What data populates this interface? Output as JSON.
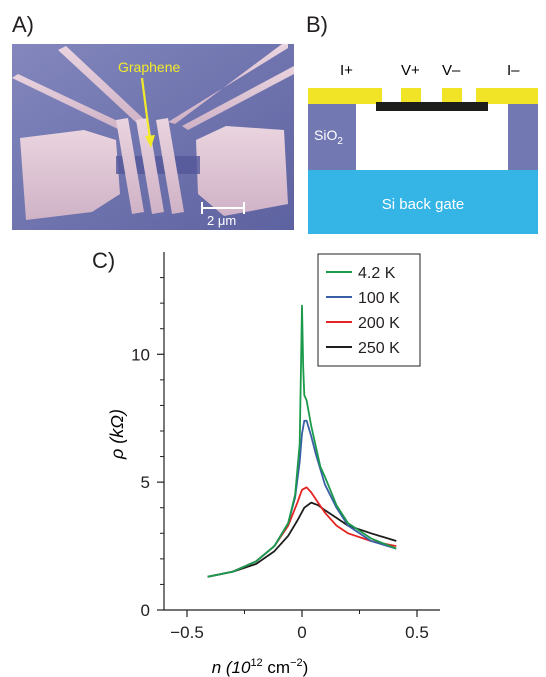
{
  "panels": {
    "a": {
      "letter": "A)",
      "label": "Graphene",
      "scalebar": "2 μm"
    },
    "b": {
      "letter": "B)",
      "contacts": [
        "I+",
        "V+",
        "V–",
        "I–"
      ],
      "oxide_main": "SiO",
      "oxide_sub": "2",
      "gate": "Si back gate"
    },
    "c": {
      "letter": "C)"
    }
  },
  "colors": {
    "sem_bg": "#6e73ad",
    "sem_metal": "#e3c8d6",
    "arrow": "#f2ea2a",
    "gold": "#f1e325",
    "oxide": "#7278b2",
    "gate": "#34b5e5"
  },
  "chart_data": {
    "type": "line",
    "xlabel_main": "n (10",
    "xlabel_exp": "12",
    "xlabel_unit": " cm",
    "xlabel_unit_exp": "−2",
    "xlabel_close": ")",
    "ylabel": "ρ (kΩ)",
    "xlim": [
      -0.6,
      0.6
    ],
    "ylim": [
      0,
      14
    ],
    "xticks": [
      -0.5,
      0,
      0.5
    ],
    "xtick_labels": [
      "−0.5",
      "0",
      "0.5"
    ],
    "yticks": [
      0,
      5,
      10
    ],
    "ytick_labels": [
      "0",
      "5",
      "10"
    ],
    "grid": false,
    "legend_position": "top-right",
    "series": [
      {
        "name": "4.2 K",
        "color": "#1a9a4a",
        "x": [
          -0.41,
          -0.3,
          -0.2,
          -0.12,
          -0.06,
          -0.03,
          -0.01,
          0,
          0.005,
          0.01,
          0.02,
          0.04,
          0.06,
          0.08,
          0.1,
          0.15,
          0.2,
          0.3,
          0.41
        ],
        "y": [
          1.3,
          1.5,
          1.9,
          2.5,
          3.4,
          4.5,
          6.5,
          11.9,
          9.5,
          8.4,
          8.2,
          7.2,
          6.4,
          5.6,
          5.2,
          4.1,
          3.4,
          2.8,
          2.4
        ]
      },
      {
        "name": "100 K",
        "color": "#3a5fa6",
        "x": [
          -0.41,
          -0.3,
          -0.2,
          -0.12,
          -0.06,
          -0.03,
          -0.01,
          0,
          0.01,
          0.02,
          0.04,
          0.06,
          0.08,
          0.1,
          0.15,
          0.2,
          0.3,
          0.41
        ],
        "y": [
          1.3,
          1.5,
          1.9,
          2.5,
          3.4,
          4.4,
          5.8,
          6.9,
          7.4,
          7.4,
          6.8,
          6.1,
          5.5,
          4.9,
          4.0,
          3.3,
          2.7,
          2.4
        ]
      },
      {
        "name": "200 K",
        "color": "#e52421",
        "x": [
          -0.41,
          -0.3,
          -0.2,
          -0.12,
          -0.06,
          -0.02,
          0,
          0.02,
          0.04,
          0.07,
          0.1,
          0.15,
          0.2,
          0.3,
          0.41
        ],
        "y": [
          1.3,
          1.5,
          1.9,
          2.5,
          3.3,
          4.2,
          4.7,
          4.8,
          4.6,
          4.2,
          3.8,
          3.3,
          3.0,
          2.7,
          2.5
        ]
      },
      {
        "name": "250 K",
        "color": "#1d1d1b",
        "x": [
          -0.41,
          -0.3,
          -0.2,
          -0.12,
          -0.06,
          -0.02,
          0.01,
          0.04,
          0.07,
          0.1,
          0.15,
          0.2,
          0.3,
          0.41
        ],
        "y": [
          1.3,
          1.5,
          1.8,
          2.3,
          2.9,
          3.5,
          4.0,
          4.2,
          4.1,
          3.9,
          3.6,
          3.3,
          3.0,
          2.7
        ]
      }
    ]
  }
}
